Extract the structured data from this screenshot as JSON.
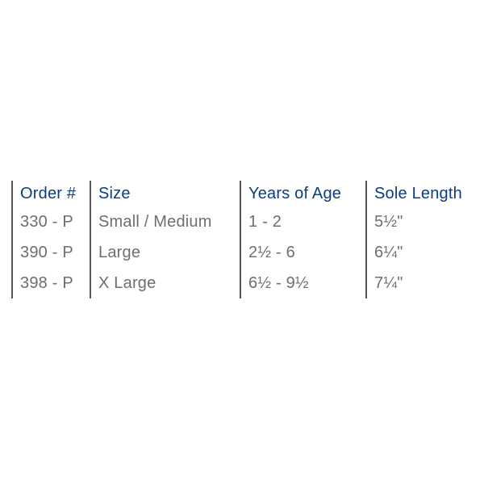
{
  "chart_data": {
    "type": "table",
    "title": "",
    "headers": [
      "Order #",
      "Size",
      "Years of Age",
      "Sole Length"
    ],
    "rows": [
      [
        "330 - P",
        "Small / Medium",
        "1 - 2",
        "5½\""
      ],
      [
        "390 - P",
        "Large",
        "2½ - 6",
        "6¼\""
      ],
      [
        "398 - P",
        "X Large",
        "6½ - 9½",
        "7¼\""
      ]
    ],
    "layout": {
      "grid": "off",
      "horizontal_rules": "none",
      "column_dividers": "vertical-bars-left-of-each-column"
    }
  },
  "colors": {
    "header_text": "#0c3c82",
    "body_text": "#6d6e71",
    "divider": "#55565a",
    "background": "#ffffff"
  }
}
